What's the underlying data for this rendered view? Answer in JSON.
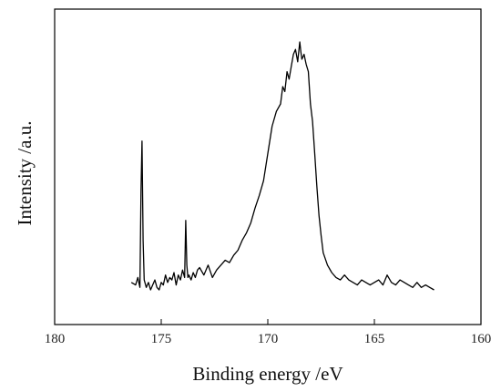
{
  "chart_data": {
    "type": "line",
    "xlabel": "Binding energy /eV",
    "ylabel": "Intensity /a.u.",
    "xlim": [
      180,
      160
    ],
    "x_reversed": true,
    "y_tick_labels_shown": false,
    "x_ticks": [
      180,
      175,
      170,
      165,
      160
    ],
    "x_tick_labels": [
      "180",
      "175",
      "170",
      "165",
      "160"
    ],
    "grid": false,
    "series": [
      {
        "color": "#000000",
        "x": [
          176.4,
          176.2,
          176.1,
          176.0,
          175.95,
          175.9,
          175.85,
          175.8,
          175.7,
          175.6,
          175.5,
          175.4,
          175.3,
          175.2,
          175.1,
          175.0,
          174.9,
          174.8,
          174.7,
          174.6,
          174.5,
          174.4,
          174.3,
          174.2,
          174.1,
          174.0,
          173.9,
          173.85,
          173.8,
          173.75,
          173.7,
          173.6,
          173.5,
          173.4,
          173.3,
          173.2,
          173.0,
          172.8,
          172.6,
          172.4,
          172.2,
          172.0,
          171.8,
          171.6,
          171.4,
          171.2,
          171.0,
          170.8,
          170.6,
          170.4,
          170.2,
          170.0,
          169.8,
          169.6,
          169.4,
          169.3,
          169.2,
          169.1,
          169.0,
          168.9,
          168.8,
          168.7,
          168.6,
          168.5,
          168.45,
          168.4,
          168.3,
          168.2,
          168.1,
          168.0,
          167.9,
          167.8,
          167.7,
          167.6,
          167.5,
          167.4,
          167.2,
          167.0,
          166.8,
          166.6,
          166.4,
          166.2,
          166.0,
          165.8,
          165.6,
          165.4,
          165.2,
          165.0,
          164.8,
          164.6,
          164.4,
          164.2,
          164.0,
          163.8,
          163.6,
          163.4,
          163.2,
          163.0,
          162.8,
          162.6,
          162.4,
          162.2
        ],
        "y": [
          3,
          2,
          5,
          1,
          40,
          60,
          20,
          4,
          1,
          3,
          0,
          2,
          4,
          1,
          0,
          3,
          2,
          6,
          3,
          5,
          4,
          7,
          2,
          6,
          4,
          8,
          5,
          28,
          10,
          5,
          6,
          4,
          7,
          5,
          8,
          9,
          6,
          10,
          5,
          8,
          10,
          12,
          11,
          14,
          16,
          20,
          23,
          27,
          33,
          38,
          44,
          55,
          66,
          72,
          75,
          82,
          80,
          88,
          85,
          90,
          95,
          97,
          92,
          100,
          96,
          93,
          95,
          91,
          88,
          75,
          68,
          55,
          42,
          30,
          22,
          15,
          10,
          7,
          5,
          4,
          6,
          4,
          3,
          2,
          4,
          3,
          2,
          3,
          4,
          2,
          6,
          3,
          2,
          4,
          3,
          2,
          1,
          3,
          1,
          2,
          1,
          0
        ]
      }
    ]
  }
}
